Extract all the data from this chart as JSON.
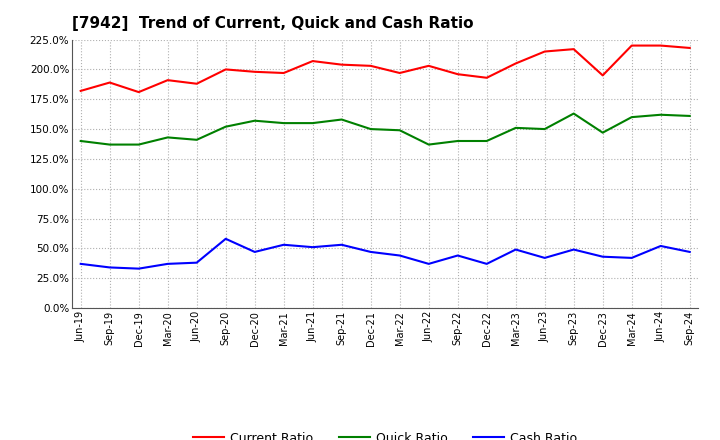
{
  "title": "[7942]  Trend of Current, Quick and Cash Ratio",
  "labels": [
    "Jun-19",
    "Sep-19",
    "Dec-19",
    "Mar-20",
    "Jun-20",
    "Sep-20",
    "Dec-20",
    "Mar-21",
    "Jun-21",
    "Sep-21",
    "Dec-21",
    "Mar-22",
    "Jun-22",
    "Sep-22",
    "Dec-22",
    "Mar-23",
    "Jun-23",
    "Sep-23",
    "Dec-23",
    "Mar-24",
    "Jun-24",
    "Sep-24"
  ],
  "current_ratio": [
    182,
    189,
    181,
    191,
    188,
    200,
    198,
    197,
    207,
    204,
    203,
    197,
    203,
    196,
    193,
    205,
    215,
    217,
    195,
    220,
    220,
    218
  ],
  "quick_ratio": [
    140,
    137,
    137,
    143,
    141,
    152,
    157,
    155,
    155,
    158,
    150,
    149,
    137,
    140,
    140,
    151,
    150,
    163,
    147,
    160,
    162,
    161
  ],
  "cash_ratio": [
    37,
    34,
    33,
    37,
    38,
    58,
    47,
    53,
    51,
    53,
    47,
    44,
    37,
    44,
    37,
    49,
    42,
    49,
    43,
    42,
    52,
    47
  ],
  "current_color": "#ff0000",
  "quick_color": "#008000",
  "cash_color": "#0000ff",
  "ylim": [
    0,
    225
  ],
  "yticks": [
    0,
    25,
    50,
    75,
    100,
    125,
    150,
    175,
    200,
    225
  ],
  "background_color": "#ffffff",
  "grid_color": "#b0b0b0",
  "line_width": 1.5,
  "title_fontsize": 11,
  "tick_fontsize": 7,
  "legend_fontsize": 9
}
